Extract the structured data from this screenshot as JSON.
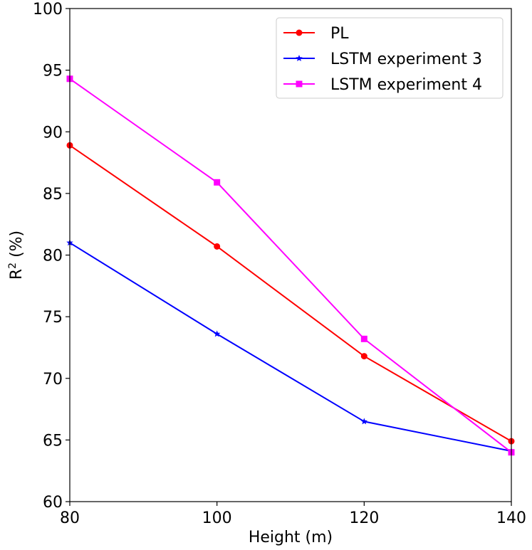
{
  "chart_data": {
    "type": "line",
    "title": "",
    "xlabel": "Height (m)",
    "ylabel_base": "R",
    "ylabel_sup": "2",
    "ylabel_rest": " (%)",
    "x": [
      80,
      100,
      120,
      140
    ],
    "xlim": [
      80,
      140
    ],
    "ylim": [
      60,
      100
    ],
    "xticks": [
      80,
      100,
      120,
      140
    ],
    "yticks": [
      60,
      65,
      70,
      75,
      80,
      85,
      90,
      95,
      100
    ],
    "grid": false,
    "legend_position": "top-right",
    "series": [
      {
        "name": "PL",
        "values": [
          88.9,
          80.7,
          71.8,
          64.9
        ],
        "color": "#ff0000",
        "marker": "circle"
      },
      {
        "name": "LSTM experiment 3",
        "values": [
          81.0,
          73.6,
          66.5,
          64.1
        ],
        "color": "#0000ff",
        "marker": "star"
      },
      {
        "name": "LSTM experiment 4",
        "values": [
          94.3,
          85.9,
          73.2,
          64.0
        ],
        "color": "#ff00ff",
        "marker": "square"
      }
    ]
  }
}
